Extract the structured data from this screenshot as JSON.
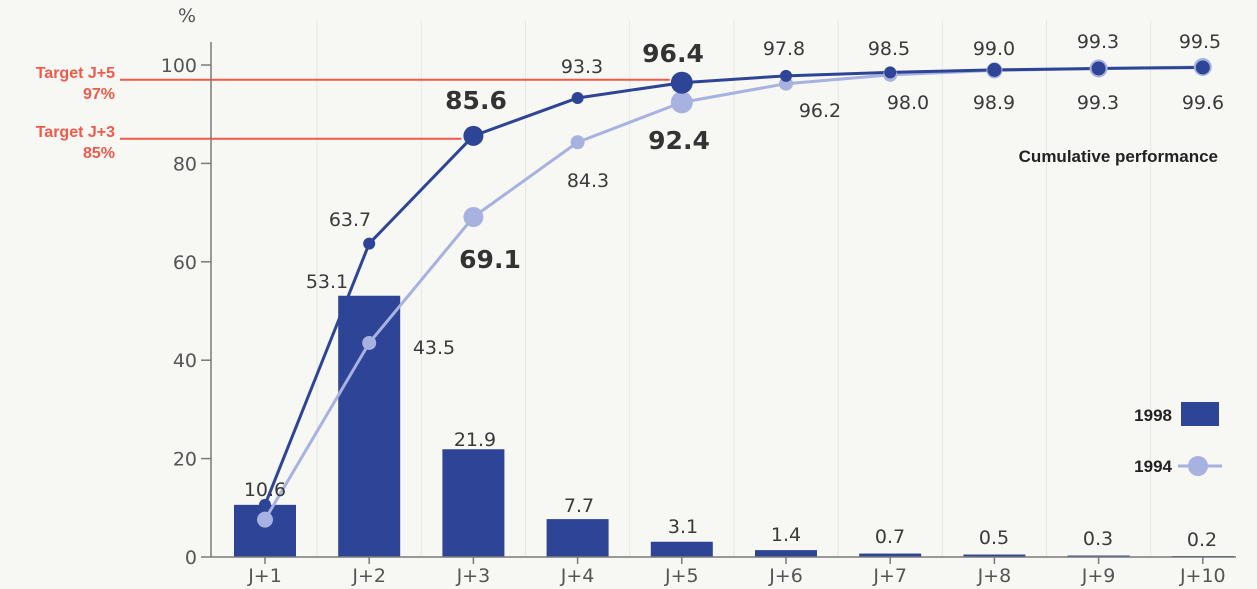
{
  "chart_data": {
    "type": "bar",
    "title": "Cumulative performance",
    "ylabel": "%",
    "ylim": [
      0,
      100
    ],
    "yticks": [
      0,
      20,
      40,
      60,
      80,
      100
    ],
    "ytick_labels": [
      "0",
      "20",
      "40",
      "60",
      "80",
      "100"
    ],
    "categories": [
      "J+1",
      "J+2",
      "J+3",
      "J+4",
      "J+5",
      "J+6",
      "J+7",
      "J+8",
      "J+9",
      "J+10"
    ],
    "bars": {
      "name": "1998",
      "values": [
        10.6,
        53.1,
        21.9,
        7.7,
        3.1,
        1.4,
        0.7,
        0.5,
        0.3,
        0.2
      ],
      "labels": [
        "10.6",
        "53.1",
        "21.9",
        "7.7",
        "3.1",
        "1.4",
        "0.7",
        "0.5",
        "0.3",
        "0.2"
      ],
      "color": "#2e4496"
    },
    "series": [
      {
        "name": "1998",
        "type": "line",
        "values": [
          10.6,
          63.7,
          85.6,
          93.3,
          96.4,
          97.8,
          98.5,
          99.0,
          99.3,
          99.5
        ],
        "labels": [
          "",
          "63.7",
          "85.6",
          "93.3",
          "96.4",
          "97.8",
          "98.5",
          "99.0",
          "99.3",
          "99.5"
        ],
        "color": "#2e4496"
      },
      {
        "name": "1994",
        "type": "line",
        "values": [
          7.6,
          43.5,
          69.1,
          84.3,
          92.4,
          96.2,
          98.0,
          98.9,
          99.3,
          99.6
        ],
        "labels": [
          "",
          "43.5",
          "69.1",
          "84.3",
          "92.4",
          "96.2",
          "98.0",
          "98.9",
          "99.3",
          "99.6"
        ],
        "color": "#a7b2e0"
      }
    ],
    "targets": [
      {
        "name": "Target J+5",
        "value_label": "97%",
        "value": 97,
        "until": "J+5"
      },
      {
        "name": "Target J+3",
        "value_label": "85%",
        "value": 85,
        "until": "J+3"
      }
    ],
    "target_color": "#f05a4a",
    "legend": [
      {
        "label": "1998",
        "kind": "bar"
      },
      {
        "label": "1994",
        "kind": "line"
      }
    ],
    "legend_position": "bottom-right",
    "grid": false
  }
}
